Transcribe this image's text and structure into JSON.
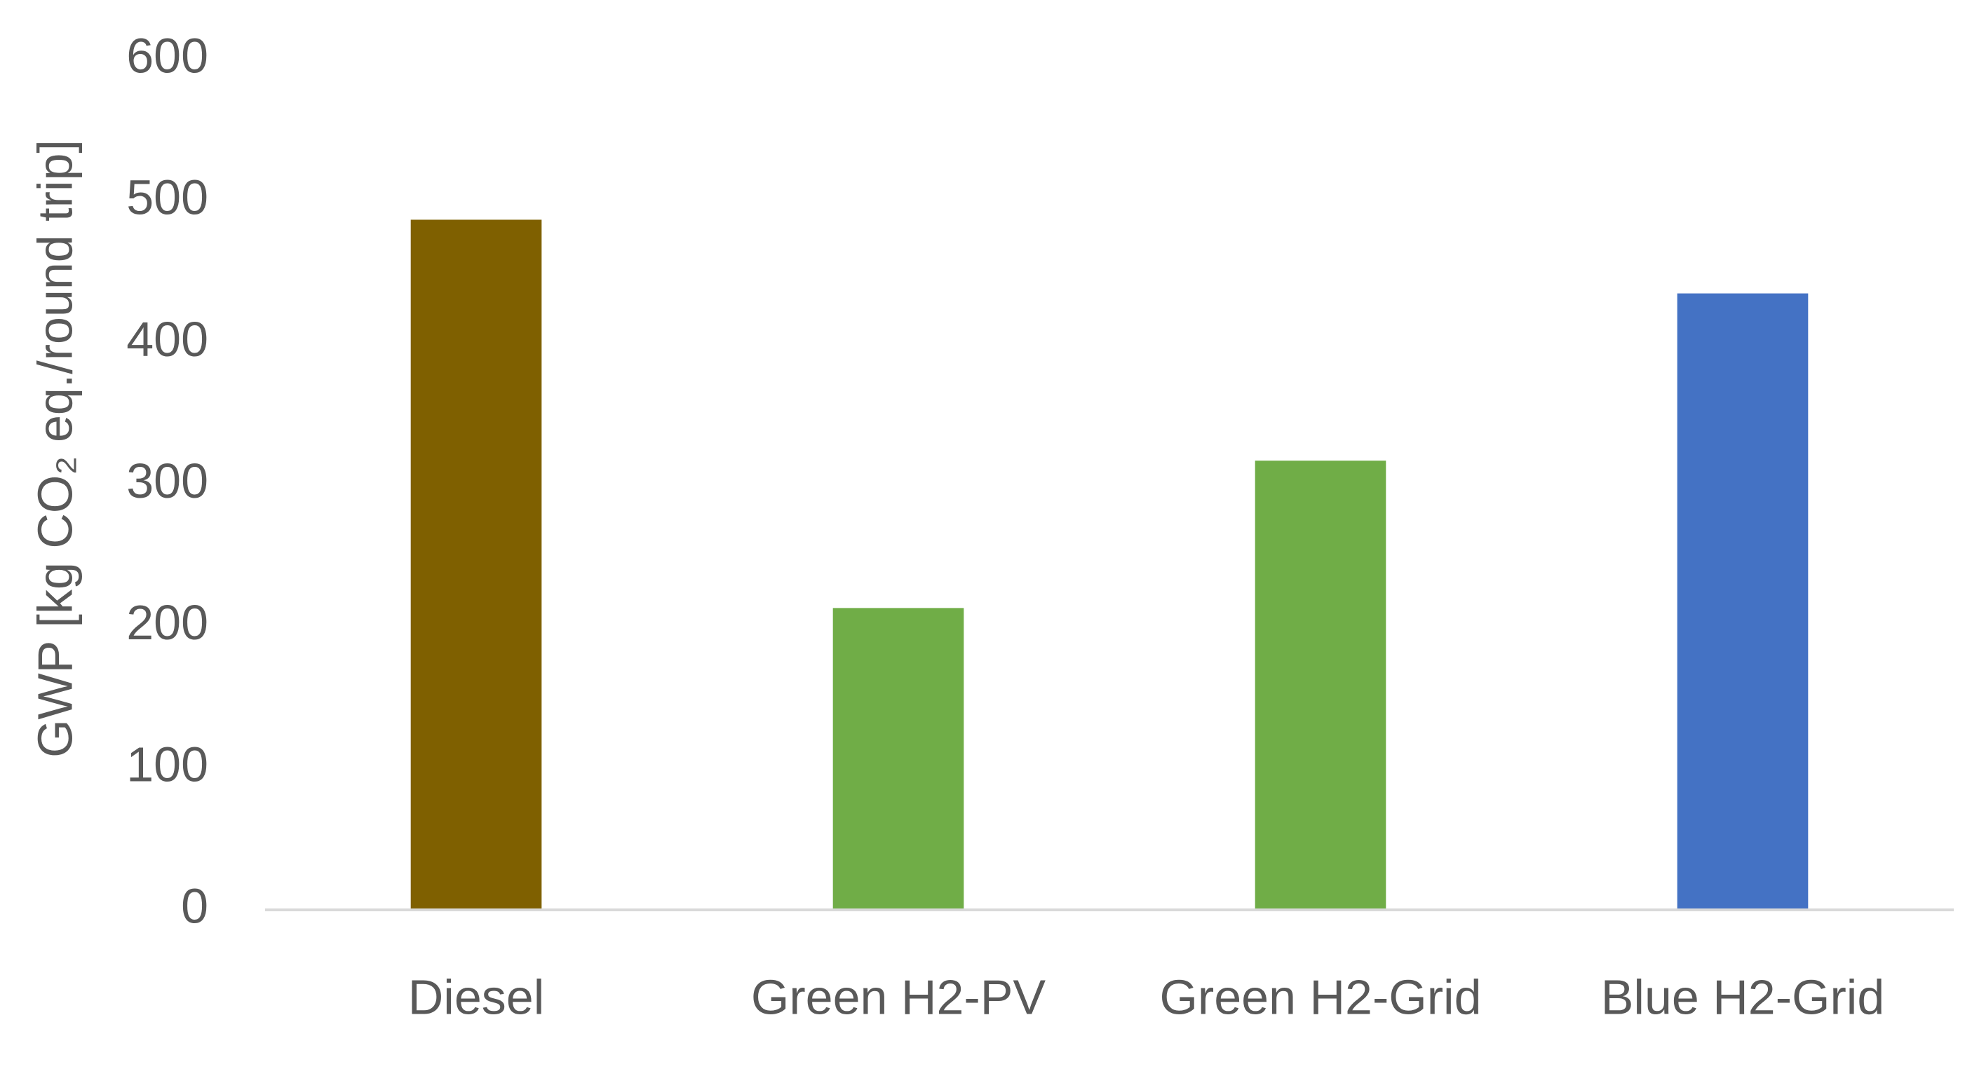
{
  "chart_data": {
    "type": "bar",
    "y_label": "GWP [kg CO₂ eq./round trip]",
    "categories": [
      "Diesel",
      "Green H2-PV",
      "Green H2-Grid",
      "Blue H2-Grid"
    ],
    "values": [
      487,
      213,
      317,
      435
    ],
    "colors": [
      "#7f6000",
      "#70ad47",
      "#70ad47",
      "#4472c4"
    ],
    "ylim": [
      0,
      600
    ],
    "yticks": [
      0,
      100,
      200,
      300,
      400,
      500,
      600
    ],
    "grid": false
  }
}
